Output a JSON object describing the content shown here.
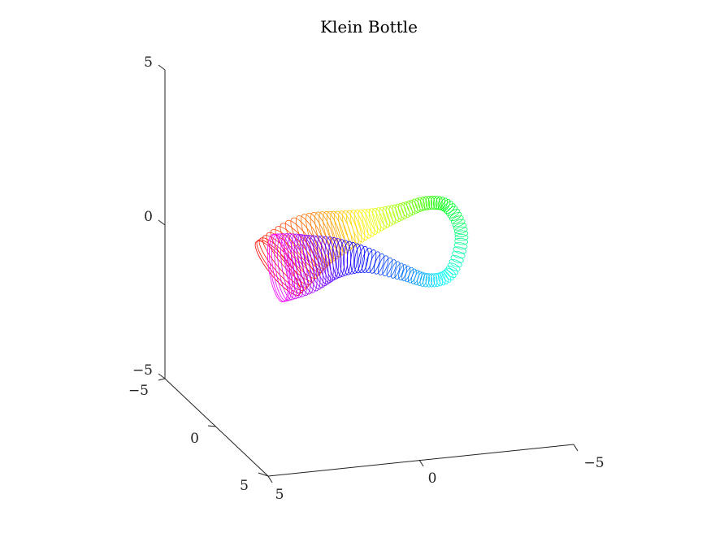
{
  "chart_data": {
    "type": "3d-surface-wireframe",
    "title": "Klein Bottle",
    "xlabel": "",
    "ylabel": "",
    "zlabel": "",
    "axes": {
      "x": {
        "ticks": [
          5,
          0,
          -5
        ],
        "tick_labels": [
          "5",
          "0",
          "−5"
        ],
        "range": [
          5,
          -5
        ]
      },
      "y": {
        "ticks": [
          -5,
          0,
          5
        ],
        "tick_labels": [
          "−5",
          "0",
          "5"
        ],
        "range": [
          -5,
          5
        ]
      },
      "z": {
        "ticks": [
          -5,
          0,
          5
        ],
        "tick_labels": [
          "−5",
          "0",
          "5"
        ],
        "range": [
          -5,
          5
        ]
      }
    },
    "grid": false,
    "legend": "none",
    "colormap": "hsv",
    "surface": {
      "name": "Klein bottle figure-8 immersion",
      "u_range": [
        0,
        6.283
      ],
      "v_range": [
        0,
        6.283
      ],
      "rings": 130
    }
  }
}
